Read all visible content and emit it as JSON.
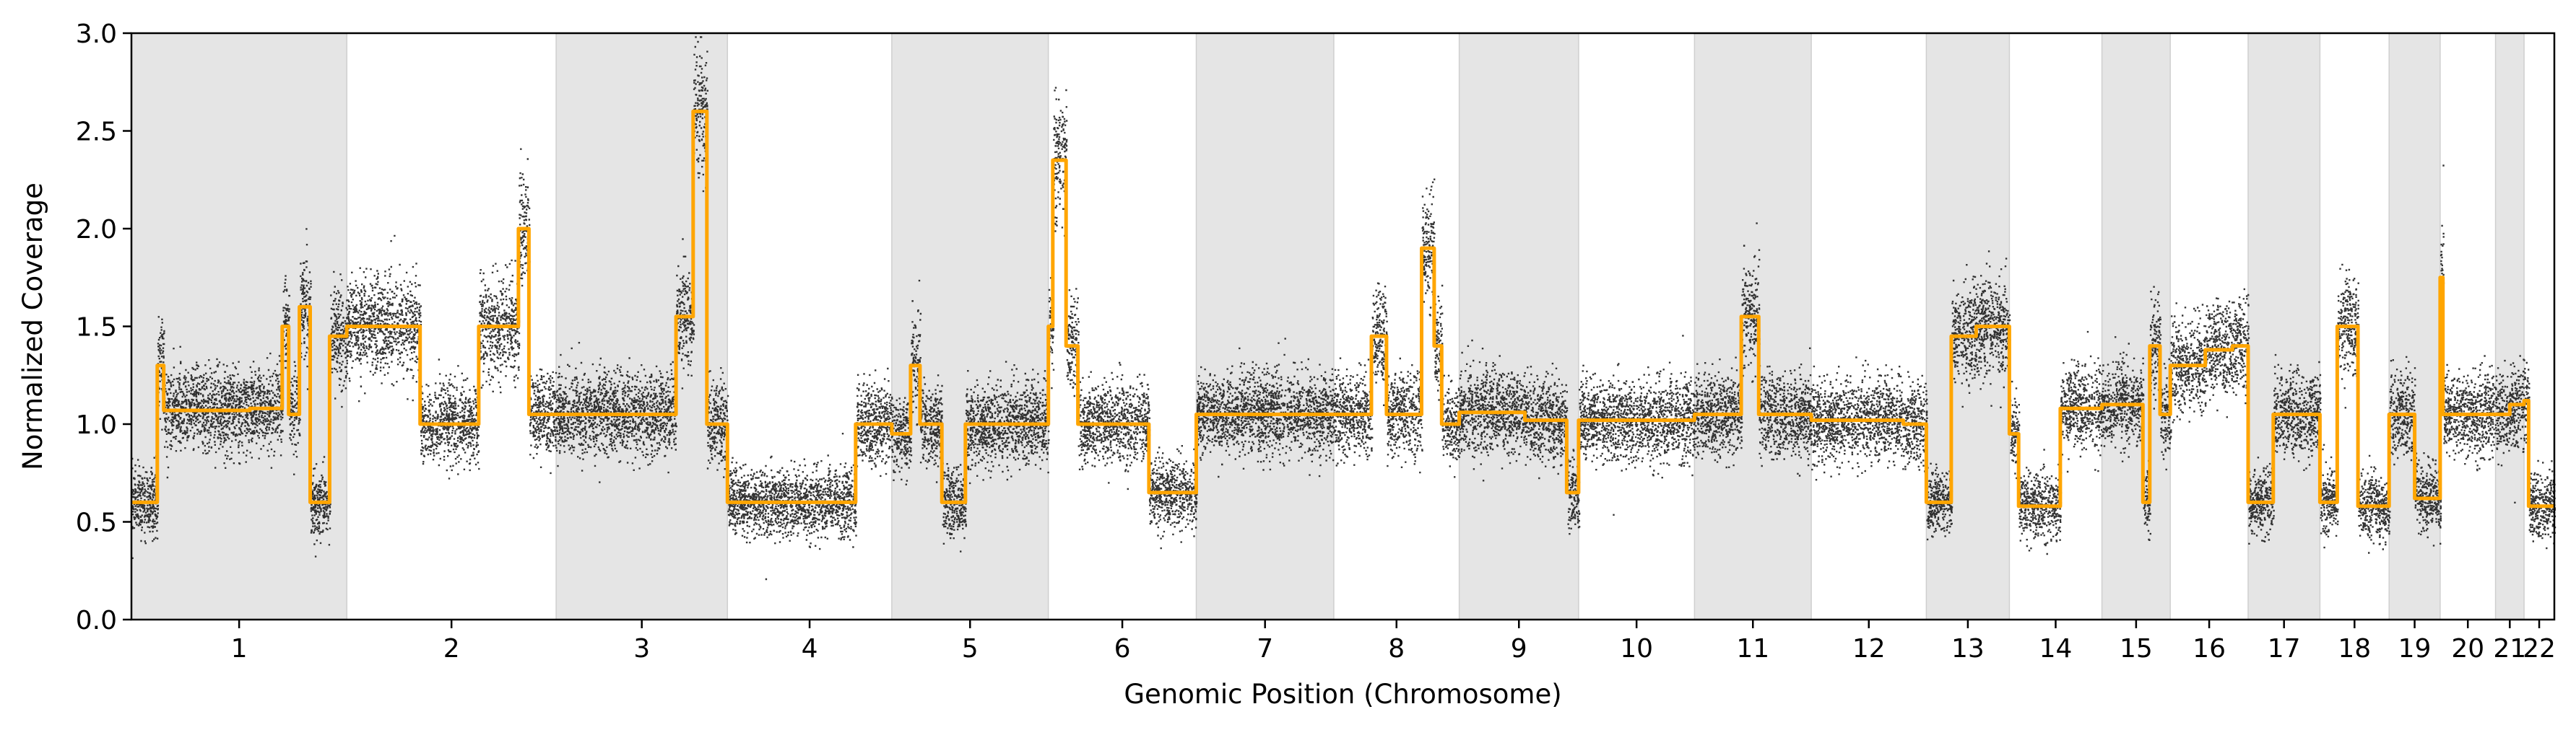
{
  "chart_data": {
    "type": "scatter",
    "xlabel": "Genomic Position (Chromosome)",
    "ylabel": "Normalized Coverage",
    "ylim": [
      0,
      3
    ],
    "yticks": [
      "0.0",
      "0.5",
      "1.0",
      "1.5",
      "2.0",
      "2.5",
      "3.0"
    ],
    "grid": false,
    "legend": "none",
    "colors": {
      "points": "#111111",
      "segments": "#ffa500",
      "band": "#e5e5e5"
    },
    "chromosomes": [
      {
        "label": "1",
        "length": 249,
        "shaded": true
      },
      {
        "label": "2",
        "length": 242,
        "shaded": false
      },
      {
        "label": "3",
        "length": 198,
        "shaded": true
      },
      {
        "label": "4",
        "length": 190,
        "shaded": false
      },
      {
        "label": "5",
        "length": 181,
        "shaded": true
      },
      {
        "label": "6",
        "length": 171,
        "shaded": false
      },
      {
        "label": "7",
        "length": 159,
        "shaded": true
      },
      {
        "label": "8",
        "length": 145,
        "shaded": false
      },
      {
        "label": "9",
        "length": 138,
        "shaded": true
      },
      {
        "label": "10",
        "length": 134,
        "shaded": false
      },
      {
        "label": "11",
        "length": 135,
        "shaded": true
      },
      {
        "label": "12",
        "length": 133,
        "shaded": false
      },
      {
        "label": "13",
        "length": 96,
        "shaded": true
      },
      {
        "label": "14",
        "length": 107,
        "shaded": false
      },
      {
        "label": "15",
        "length": 79,
        "shaded": true
      },
      {
        "label": "16",
        "length": 90,
        "shaded": false
      },
      {
        "label": "17",
        "length": 83,
        "shaded": true
      },
      {
        "label": "18",
        "length": 80,
        "shaded": false
      },
      {
        "label": "19",
        "length": 59,
        "shaded": true
      },
      {
        "label": "20",
        "length": 64,
        "shaded": false
      },
      {
        "label": "21",
        "length": 33,
        "shaded": true
      },
      {
        "label": "22",
        "length": 35,
        "shaded": false
      }
    ],
    "segments": [
      [
        1,
        0.0,
        0.12,
        0.6
      ],
      [
        1,
        0.12,
        0.15,
        1.3
      ],
      [
        1,
        0.15,
        0.55,
        1.07
      ],
      [
        1,
        0.55,
        0.7,
        1.08
      ],
      [
        1,
        0.7,
        0.73,
        1.5
      ],
      [
        1,
        0.73,
        0.78,
        1.05
      ],
      [
        1,
        0.78,
        0.83,
        1.6
      ],
      [
        1,
        0.83,
        0.92,
        0.6
      ],
      [
        1,
        0.92,
        1.0,
        1.45
      ],
      [
        2,
        0.0,
        0.35,
        1.5
      ],
      [
        2,
        0.35,
        0.63,
        1.0
      ],
      [
        2,
        0.63,
        0.82,
        1.5
      ],
      [
        2,
        0.82,
        0.87,
        2.0
      ],
      [
        2,
        0.87,
        1.0,
        1.05
      ],
      [
        3,
        0.0,
        0.7,
        1.05
      ],
      [
        3,
        0.7,
        0.8,
        1.55
      ],
      [
        3,
        0.8,
        0.88,
        2.6
      ],
      [
        3,
        0.88,
        1.0,
        1.0
      ],
      [
        4,
        0.0,
        0.78,
        0.6
      ],
      [
        4,
        0.78,
        1.0,
        1.0
      ],
      [
        5,
        0.0,
        0.12,
        0.95
      ],
      [
        5,
        0.12,
        0.18,
        1.3
      ],
      [
        5,
        0.18,
        0.32,
        1.0
      ],
      [
        5,
        0.32,
        0.47,
        0.6
      ],
      [
        5,
        0.47,
        1.0,
        1.0
      ],
      [
        6,
        0.0,
        0.03,
        1.5
      ],
      [
        6,
        0.03,
        0.12,
        2.35
      ],
      [
        6,
        0.12,
        0.2,
        1.4
      ],
      [
        6,
        0.2,
        0.68,
        1.0
      ],
      [
        6,
        0.68,
        1.0,
        0.65
      ],
      [
        7,
        0.0,
        1.0,
        1.05
      ],
      [
        8,
        0.0,
        0.3,
        1.05
      ],
      [
        8,
        0.3,
        0.42,
        1.45
      ],
      [
        8,
        0.42,
        0.7,
        1.05
      ],
      [
        8,
        0.7,
        0.8,
        1.9
      ],
      [
        8,
        0.8,
        0.86,
        1.4
      ],
      [
        8,
        0.86,
        1.0,
        1.0
      ],
      [
        9,
        0.0,
        0.55,
        1.06
      ],
      [
        9,
        0.55,
        0.9,
        1.02
      ],
      [
        9,
        0.9,
        1.0,
        0.65
      ],
      [
        10,
        0.0,
        1.0,
        1.02
      ],
      [
        11,
        0.0,
        0.4,
        1.05
      ],
      [
        11,
        0.4,
        0.55,
        1.55
      ],
      [
        11,
        0.55,
        1.0,
        1.05
      ],
      [
        12,
        0.0,
        0.8,
        1.02
      ],
      [
        12,
        0.8,
        1.0,
        1.0
      ],
      [
        13,
        0.0,
        0.3,
        0.6
      ],
      [
        13,
        0.3,
        0.6,
        1.45
      ],
      [
        13,
        0.6,
        0.85,
        1.5
      ],
      [
        13,
        0.85,
        1.0,
        1.5
      ],
      [
        14,
        0.0,
        0.1,
        0.95
      ],
      [
        14,
        0.1,
        0.55,
        0.58
      ],
      [
        14,
        0.55,
        1.0,
        1.08
      ],
      [
        15,
        0.0,
        0.6,
        1.1
      ],
      [
        15,
        0.6,
        0.7,
        0.6
      ],
      [
        15,
        0.7,
        0.85,
        1.4
      ],
      [
        15,
        0.85,
        1.0,
        1.05
      ],
      [
        16,
        0.0,
        0.45,
        1.3
      ],
      [
        16,
        0.45,
        0.8,
        1.38
      ],
      [
        16,
        0.8,
        1.0,
        1.4
      ],
      [
        17,
        0.0,
        0.35,
        0.6
      ],
      [
        17,
        0.35,
        1.0,
        1.05
      ],
      [
        18,
        0.0,
        0.25,
        0.6
      ],
      [
        18,
        0.25,
        0.55,
        1.5
      ],
      [
        18,
        0.55,
        1.0,
        0.58
      ],
      [
        19,
        0.0,
        0.5,
        1.05
      ],
      [
        19,
        0.5,
        1.0,
        0.62
      ],
      [
        20,
        0.0,
        0.05,
        1.75
      ],
      [
        20,
        0.05,
        1.0,
        1.05
      ],
      [
        21,
        0.0,
        0.5,
        1.05
      ],
      [
        21,
        0.5,
        1.0,
        1.1
      ],
      [
        22,
        0.0,
        0.15,
        1.12
      ],
      [
        22,
        0.15,
        1.0,
        0.58
      ]
    ]
  }
}
